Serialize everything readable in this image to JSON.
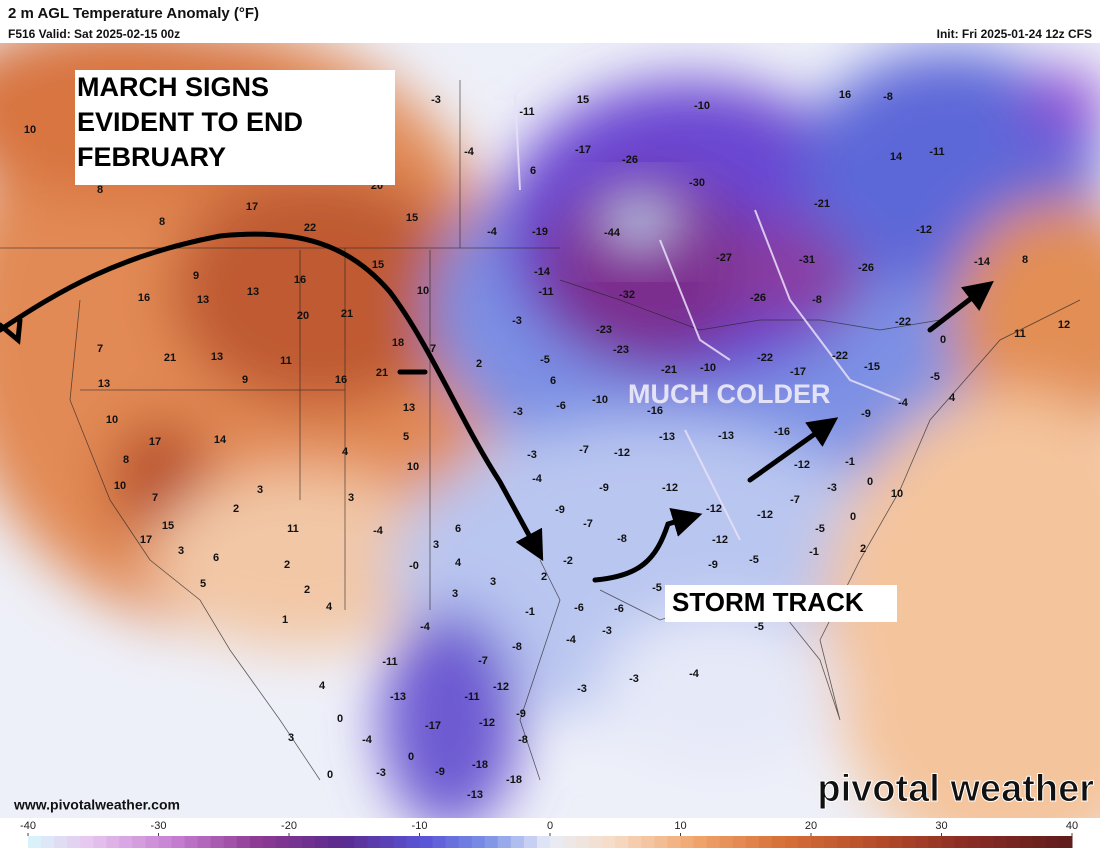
{
  "header": {
    "title": "2 m AGL Temperature Anomaly (°F)",
    "valid": "F516 Valid: Sat 2025-02-15 00z",
    "init": "Init: Fri 2025-01-24 12z CFS"
  },
  "annotations": {
    "headline": [
      "MARCH SIGNS",
      "EVIDENT TO END",
      "FEBRUARY"
    ],
    "cold": "MUCH COLDER",
    "track": "STORM TRACK"
  },
  "map": {
    "station_values": [
      10,
      8,
      8,
      17,
      22,
      15,
      20,
      9,
      16,
      13,
      13,
      16,
      15,
      10,
      20,
      21,
      7,
      21,
      13,
      11,
      9,
      18,
      16,
      21,
      7,
      13,
      13,
      10,
      17,
      14,
      5,
      8,
      4,
      10,
      10,
      7,
      3,
      3,
      15,
      2,
      11,
      -4,
      6,
      17,
      3,
      6,
      3,
      2,
      "-0",
      4,
      5,
      2,
      3,
      4,
      3,
      2,
      -2,
      -11,
      15,
      -10,
      -3,
      -17,
      -26,
      -30,
      16,
      -8,
      14,
      -11,
      -4,
      6,
      -19,
      -4,
      -44,
      -21,
      -12,
      -27,
      -31,
      -26,
      -14,
      8,
      -14,
      -11,
      -32,
      -26,
      -8,
      -22,
      11,
      12,
      -3,
      -23,
      -23,
      -22,
      -17,
      -22,
      -15,
      0,
      -5,
      2,
      -21,
      -10,
      -5,
      6,
      -10,
      -6,
      -16,
      -9,
      -4,
      4,
      -3,
      -13,
      -13,
      -16,
      -3,
      -7,
      -12,
      -12,
      -1,
      -4,
      -9,
      -12,
      -3,
      0,
      10,
      -9,
      -7,
      -12,
      -7,
      -12,
      0,
      -8,
      -12,
      -5,
      -1,
      2,
      -5,
      -9,
      -5,
      -1,
      -6,
      -6,
      -4,
      -8,
      -4,
      -3,
      -5,
      -11,
      -7,
      -12,
      -13,
      -11,
      -3,
      -3,
      -4,
      -9,
      -17,
      -12,
      -8,
      -18,
      -18,
      -13,
      -9,
      0,
      -3,
      1,
      4,
      3,
      0,
      -4,
      0
    ]
  },
  "colorbar": {
    "range": [
      -40,
      40
    ],
    "ticks": [
      -40,
      -30,
      -20,
      -10,
      0,
      10,
      20,
      30,
      40
    ]
  },
  "footer": {
    "url": "www.pivotalweather.com",
    "brand": "pivotal weather"
  }
}
